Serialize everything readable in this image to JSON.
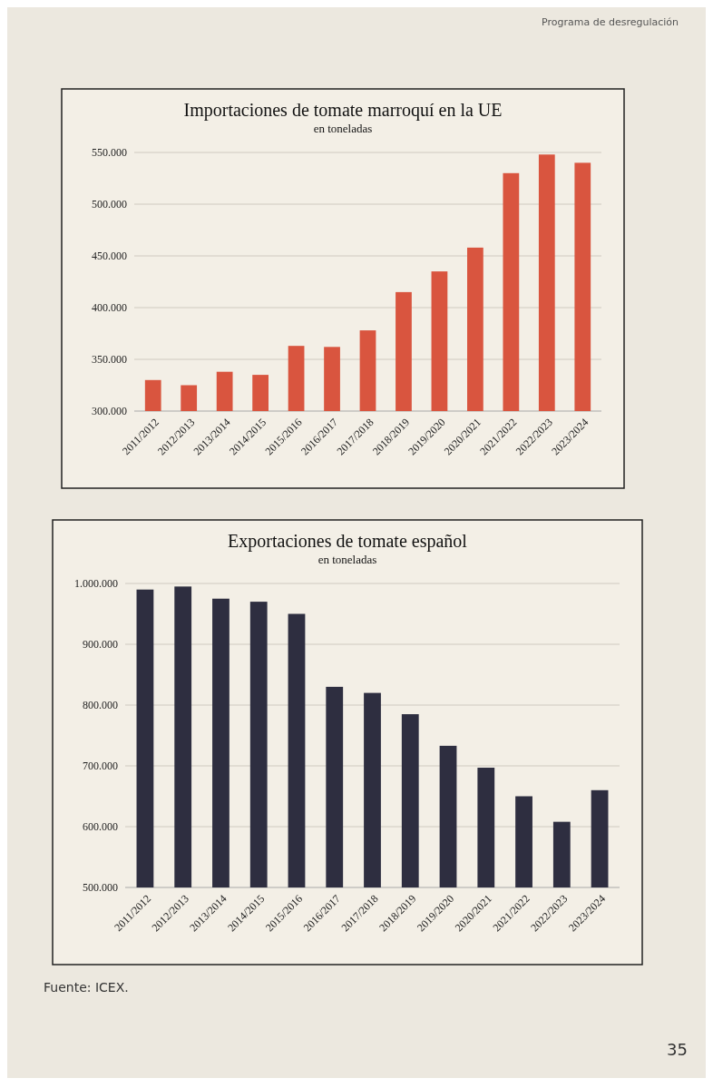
{
  "chart_data": [
    {
      "type": "bar",
      "title": "Importaciones de tomate marroquí en la UE",
      "subtitle": "en toneladas",
      "categories": [
        "2011/2012",
        "2012/2013",
        "2013/2014",
        "2014/2015",
        "2015/2016",
        "2016/2017",
        "2017/2018",
        "2018/2019",
        "2019/2020",
        "2020/2021",
        "2021/2022",
        "2022/2023",
        "2023/2024"
      ],
      "values": [
        330000,
        325000,
        338000,
        335000,
        363000,
        362000,
        378000,
        415000,
        435000,
        458000,
        530000,
        548000,
        540000
      ],
      "color": "#d9553f",
      "ylim": [
        300000,
        550000
      ],
      "yticks": [
        {
          "value": 300000,
          "label": "300.000"
        },
        {
          "value": 350000,
          "label": "350.000"
        },
        {
          "value": 400000,
          "label": "400.000"
        },
        {
          "value": 450000,
          "label": "450.000"
        },
        {
          "value": 500000,
          "label": "500.000"
        },
        {
          "value": 550000,
          "label": "550.000"
        }
      ],
      "grid": "y",
      "annotations": [
        "Programa de desregulación"
      ]
    },
    {
      "type": "bar",
      "title": "Exportaciones de tomate español",
      "subtitle": "en toneladas",
      "categories": [
        "2011/2012",
        "2012/2013",
        "2013/2014",
        "2014/2015",
        "2015/2016",
        "2016/2017",
        "2017/2018",
        "2018/2019",
        "2019/2020",
        "2020/2021",
        "2021/2022",
        "2022/2023",
        "2023/2024"
      ],
      "values": [
        990000,
        995000,
        975000,
        970000,
        950000,
        830000,
        820000,
        785000,
        733000,
        697000,
        650000,
        608000,
        660000
      ],
      "color": "#2e2e40",
      "ylim": [
        500000,
        1000000
      ],
      "yticks": [
        {
          "value": 500000,
          "label": "500.000"
        },
        {
          "value": 600000,
          "label": "600.000"
        },
        {
          "value": 700000,
          "label": "700.000"
        },
        {
          "value": 800000,
          "label": "800.000"
        },
        {
          "value": 900000,
          "label": "900.000"
        },
        {
          "value": 1000000,
          "label": "1.000.000"
        }
      ],
      "grid": "y",
      "annotations": [
        "Fuente: ICEX.",
        "35"
      ]
    }
  ]
}
